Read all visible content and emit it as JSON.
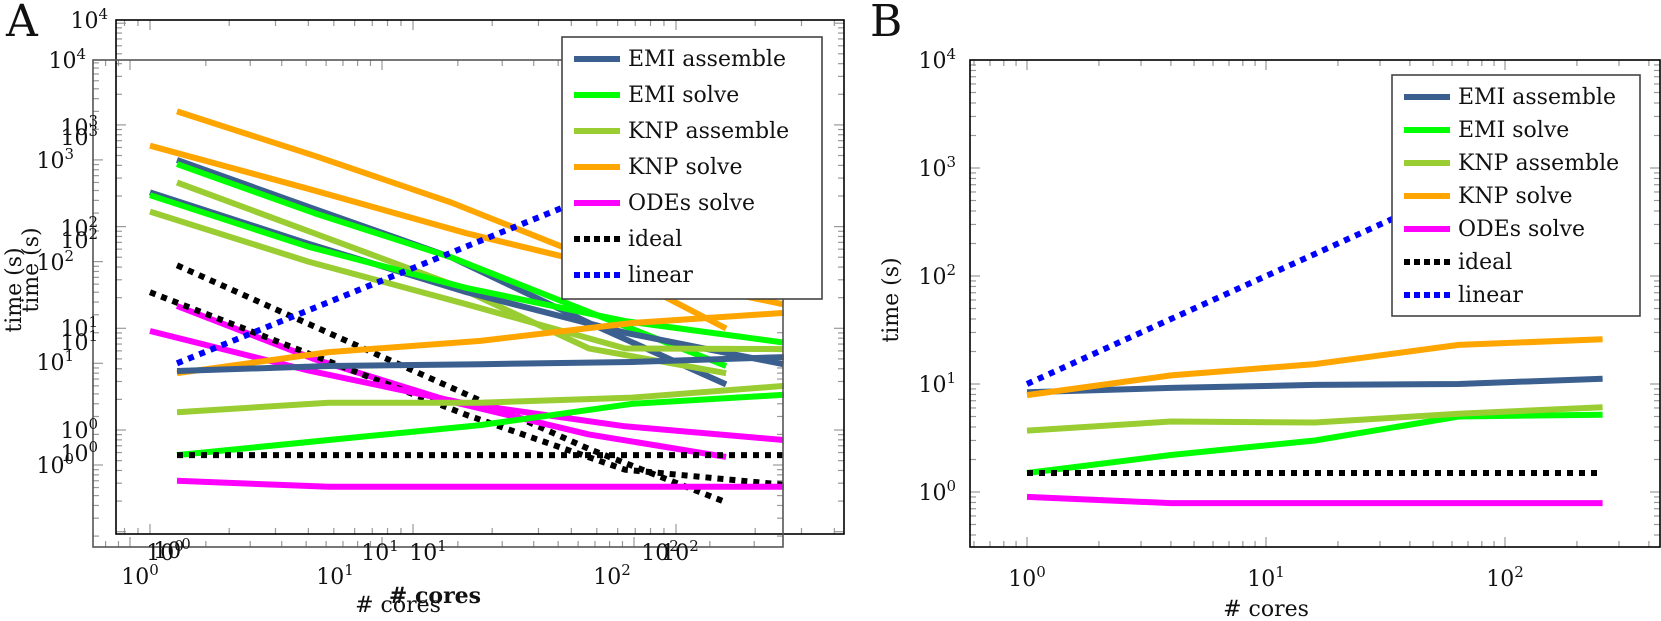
{
  "panels": [
    {
      "letter": "A"
    },
    {
      "letter": "B"
    }
  ],
  "legend_entries": [
    "EMI assemble",
    "EMI solve",
    "KNP assemble",
    "KNP solve",
    "ODEs solve",
    "ideal",
    "linear"
  ],
  "colors": {
    "EMI assemble": "#3b5f8e",
    "EMI solve": "#00ff00",
    "KNP assemble": "#9acd32",
    "KNP solve": "#ffa500",
    "ODEs solve": "#ff00ff",
    "ideal": "#000000",
    "linear": "#0000ff"
  },
  "chart_data": [
    {
      "type": "line",
      "panel": "A",
      "note": "Rendering artifact: three overlapping copies of the plot (two strong-scaling, one weak-scaling) with duplicated axes",
      "title": "",
      "xlabel": "# cores",
      "xlabel_bold_duplicate": "# cores",
      "ylabel": "time (s)",
      "ylabel_duplicate": "time (s)",
      "xscale": "log",
      "yscale": "log",
      "xlim": [
        0.6,
        400
      ],
      "ylim": [
        0.3,
        10000
      ],
      "x_tick_labels": [
        "10^0",
        "10^1",
        "10^2"
      ],
      "y_tick_labels": [
        "10^0",
        "10^1",
        "10^2",
        "10^3",
        "10^4"
      ],
      "legend_position": "top-right",
      "layers": [
        {
          "name": "strong-scaling-copy-1",
          "x": [
            1,
            4,
            16,
            64,
            256
          ],
          "series": [
            {
              "name": "KNP solve",
              "values": [
                3000,
                1100,
                380,
                110,
                22
              ]
            },
            {
              "name": "EMI assemble",
              "values": [
                1000,
                330,
                110,
                25,
                6.2
              ]
            },
            {
              "name": "EMI solve",
              "values": [
                910,
                300,
                110,
                32,
                9.4
              ]
            },
            {
              "name": "KNP assemble",
              "values": [
                600,
                190,
                60,
                14,
                8
              ]
            },
            {
              "name": "ideal",
              "values": [
                92,
                23,
                5.75,
                1.44,
                0.43
              ]
            },
            {
              "name": "ODEs solve",
              "values": [
                36.6,
                11,
                4.2,
                2.0,
                1.2
              ]
            }
          ]
        },
        {
          "name": "strong-scaling-copy-2",
          "x": [
            1,
            4,
            16,
            64,
            256
          ],
          "series": [
            {
              "name": "KNP solve",
              "values": [
                1380,
                520,
                190,
                80,
                38
              ]
            },
            {
              "name": "EMI assemble",
              "values": [
                480,
                150,
                50,
                20,
                9.8
              ]
            },
            {
              "name": "EMI solve",
              "values": [
                450,
                140,
                55,
                26,
                16
              ]
            },
            {
              "name": "KNP assemble",
              "values": [
                310,
                100,
                38,
                14,
                13.8
              ]
            },
            {
              "name": "ideal",
              "values": [
                50,
                12.5,
                3.1,
                0.9,
                0.64
              ]
            },
            {
              "name": "ODEs solve",
              "values": [
                20.8,
                8.5,
                4.0,
                2.4,
                1.76
              ]
            }
          ]
        },
        {
          "name": "weak-scaling-copy",
          "x": [
            1,
            4,
            16,
            64,
            256
          ],
          "series": [
            {
              "name": "KNP solve",
              "values": [
                8.0,
                12.9,
                16.6,
                24.9,
                31.3
              ]
            },
            {
              "name": "EMI assemble",
              "values": [
                8.4,
                9.4,
                9.8,
                10.3,
                11.5
              ]
            },
            {
              "name": "KNP assemble",
              "values": [
                3.3,
                4.1,
                4.1,
                4.6,
                6.0
              ]
            },
            {
              "name": "EMI solve",
              "values": [
                1.25,
                1.76,
                2.47,
                4.0,
                4.9
              ]
            },
            {
              "name": "ideal",
              "values": [
                1.25,
                1.25,
                1.25,
                1.25,
                1.25
              ]
            },
            {
              "name": "ODEs solve",
              "values": [
                0.7,
                0.61,
                0.61,
                0.61,
                0.61
              ]
            },
            {
              "name": "linear",
              "values": [
                10,
                40,
                160,
                640,
                2560
              ]
            }
          ]
        }
      ]
    },
    {
      "type": "line",
      "panel": "B",
      "title": "",
      "xlabel": "# cores",
      "ylabel": "time (s)",
      "xscale": "log",
      "yscale": "log",
      "xlim": [
        0.5,
        400
      ],
      "ylim": [
        0.3,
        10000
      ],
      "x_tick_labels": [
        "10^0",
        "10^1",
        "10^2"
      ],
      "y_tick_labels": [
        "10^0",
        "10^1",
        "10^2",
        "10^3",
        "10^4"
      ],
      "legend_position": "top-right",
      "x": [
        1,
        4,
        16,
        64,
        256
      ],
      "series": [
        {
          "name": "EMI assemble",
          "values": [
            8.4,
            9.2,
            9.8,
            10.0,
            11.2
          ]
        },
        {
          "name": "EMI solve",
          "values": [
            1.5,
            2.2,
            3.0,
            5.0,
            5.2
          ]
        },
        {
          "name": "KNP assemble",
          "values": [
            3.7,
            4.5,
            4.4,
            5.3,
            6.1
          ]
        },
        {
          "name": "KNP solve",
          "values": [
            7.9,
            12,
            15.3,
            23,
            26
          ]
        },
        {
          "name": "ODEs solve",
          "values": [
            0.9,
            0.79,
            0.79,
            0.79,
            0.79
          ]
        },
        {
          "name": "ideal",
          "values": [
            1.5,
            1.5,
            1.5,
            1.5,
            1.5
          ]
        },
        {
          "name": "linear",
          "values": [
            10,
            40,
            160,
            640,
            2560
          ]
        }
      ]
    }
  ]
}
